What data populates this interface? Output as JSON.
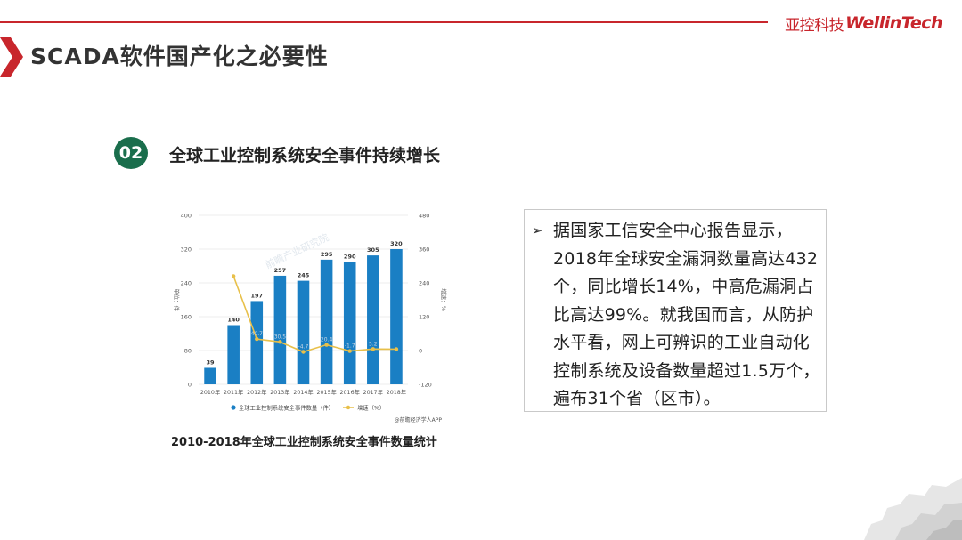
{
  "header": {
    "title": "SCADA软件国产化之必要性",
    "brand_cn": "亚控科技",
    "brand_en": "WellinTech",
    "accent_color": "#c8262c"
  },
  "section": {
    "number": "02",
    "title": "全球工业控制系统安全事件持续增长",
    "badge_color": "#1a6e4c"
  },
  "chart_data": {
    "type": "bar",
    "categories": [
      "2010年",
      "2011年",
      "2012年",
      "2013年",
      "2014年",
      "2015年",
      "2016年",
      "2017年",
      "2018年"
    ],
    "series": [
      {
        "name": "全球工业控制系统安全事件数量（件）",
        "type": "bar",
        "axis": "left",
        "color": "#1a7fc4",
        "values": [
          39,
          140,
          197,
          257,
          245,
          295,
          290,
          305,
          320
        ],
        "labels": [
          "39",
          "140",
          "197",
          "257",
          "245",
          "295",
          "290",
          "305",
          "320"
        ]
      },
      {
        "name": "增速（%）",
        "type": "line",
        "axis": "right",
        "color": "#e8c04a",
        "values": [
          null,
          264,
          40.7,
          30.5,
          -4.7,
          20.4,
          -1.7,
          5.2,
          4.9
        ],
        "labels": [
          "",
          "",
          "40.7",
          "30.5",
          "-4.7",
          "20.4",
          "-1.7",
          "5.2",
          ""
        ]
      }
    ],
    "left_axis": {
      "label": "单位：件",
      "min": 0,
      "max": 400,
      "ticks": [
        "0",
        "80",
        "160",
        "240",
        "320",
        "400"
      ]
    },
    "right_axis": {
      "label": "增速：%",
      "min": -120,
      "max": 480,
      "ticks": [
        "-120",
        "0",
        "120",
        "240",
        "360",
        "480"
      ]
    },
    "grid": true,
    "legend": "bottom",
    "source": "@前瞻经济学人APP",
    "watermark": "前瞻产业研究院",
    "caption": "2010-2018年全球工业控制系统安全事件数量统计"
  },
  "textbox": {
    "bullet_icon": "arrow-right-icon",
    "text": "据国家工信安全中心报告显示，2018年全球安全漏洞数量高达432个，同比增长14%，中高危漏洞占比高达99%。就我国而言，从防护水平看，网上可辨识的工业自动化控制系统及设备数量超过1.5万个，遍布31个省（区市）。"
  }
}
